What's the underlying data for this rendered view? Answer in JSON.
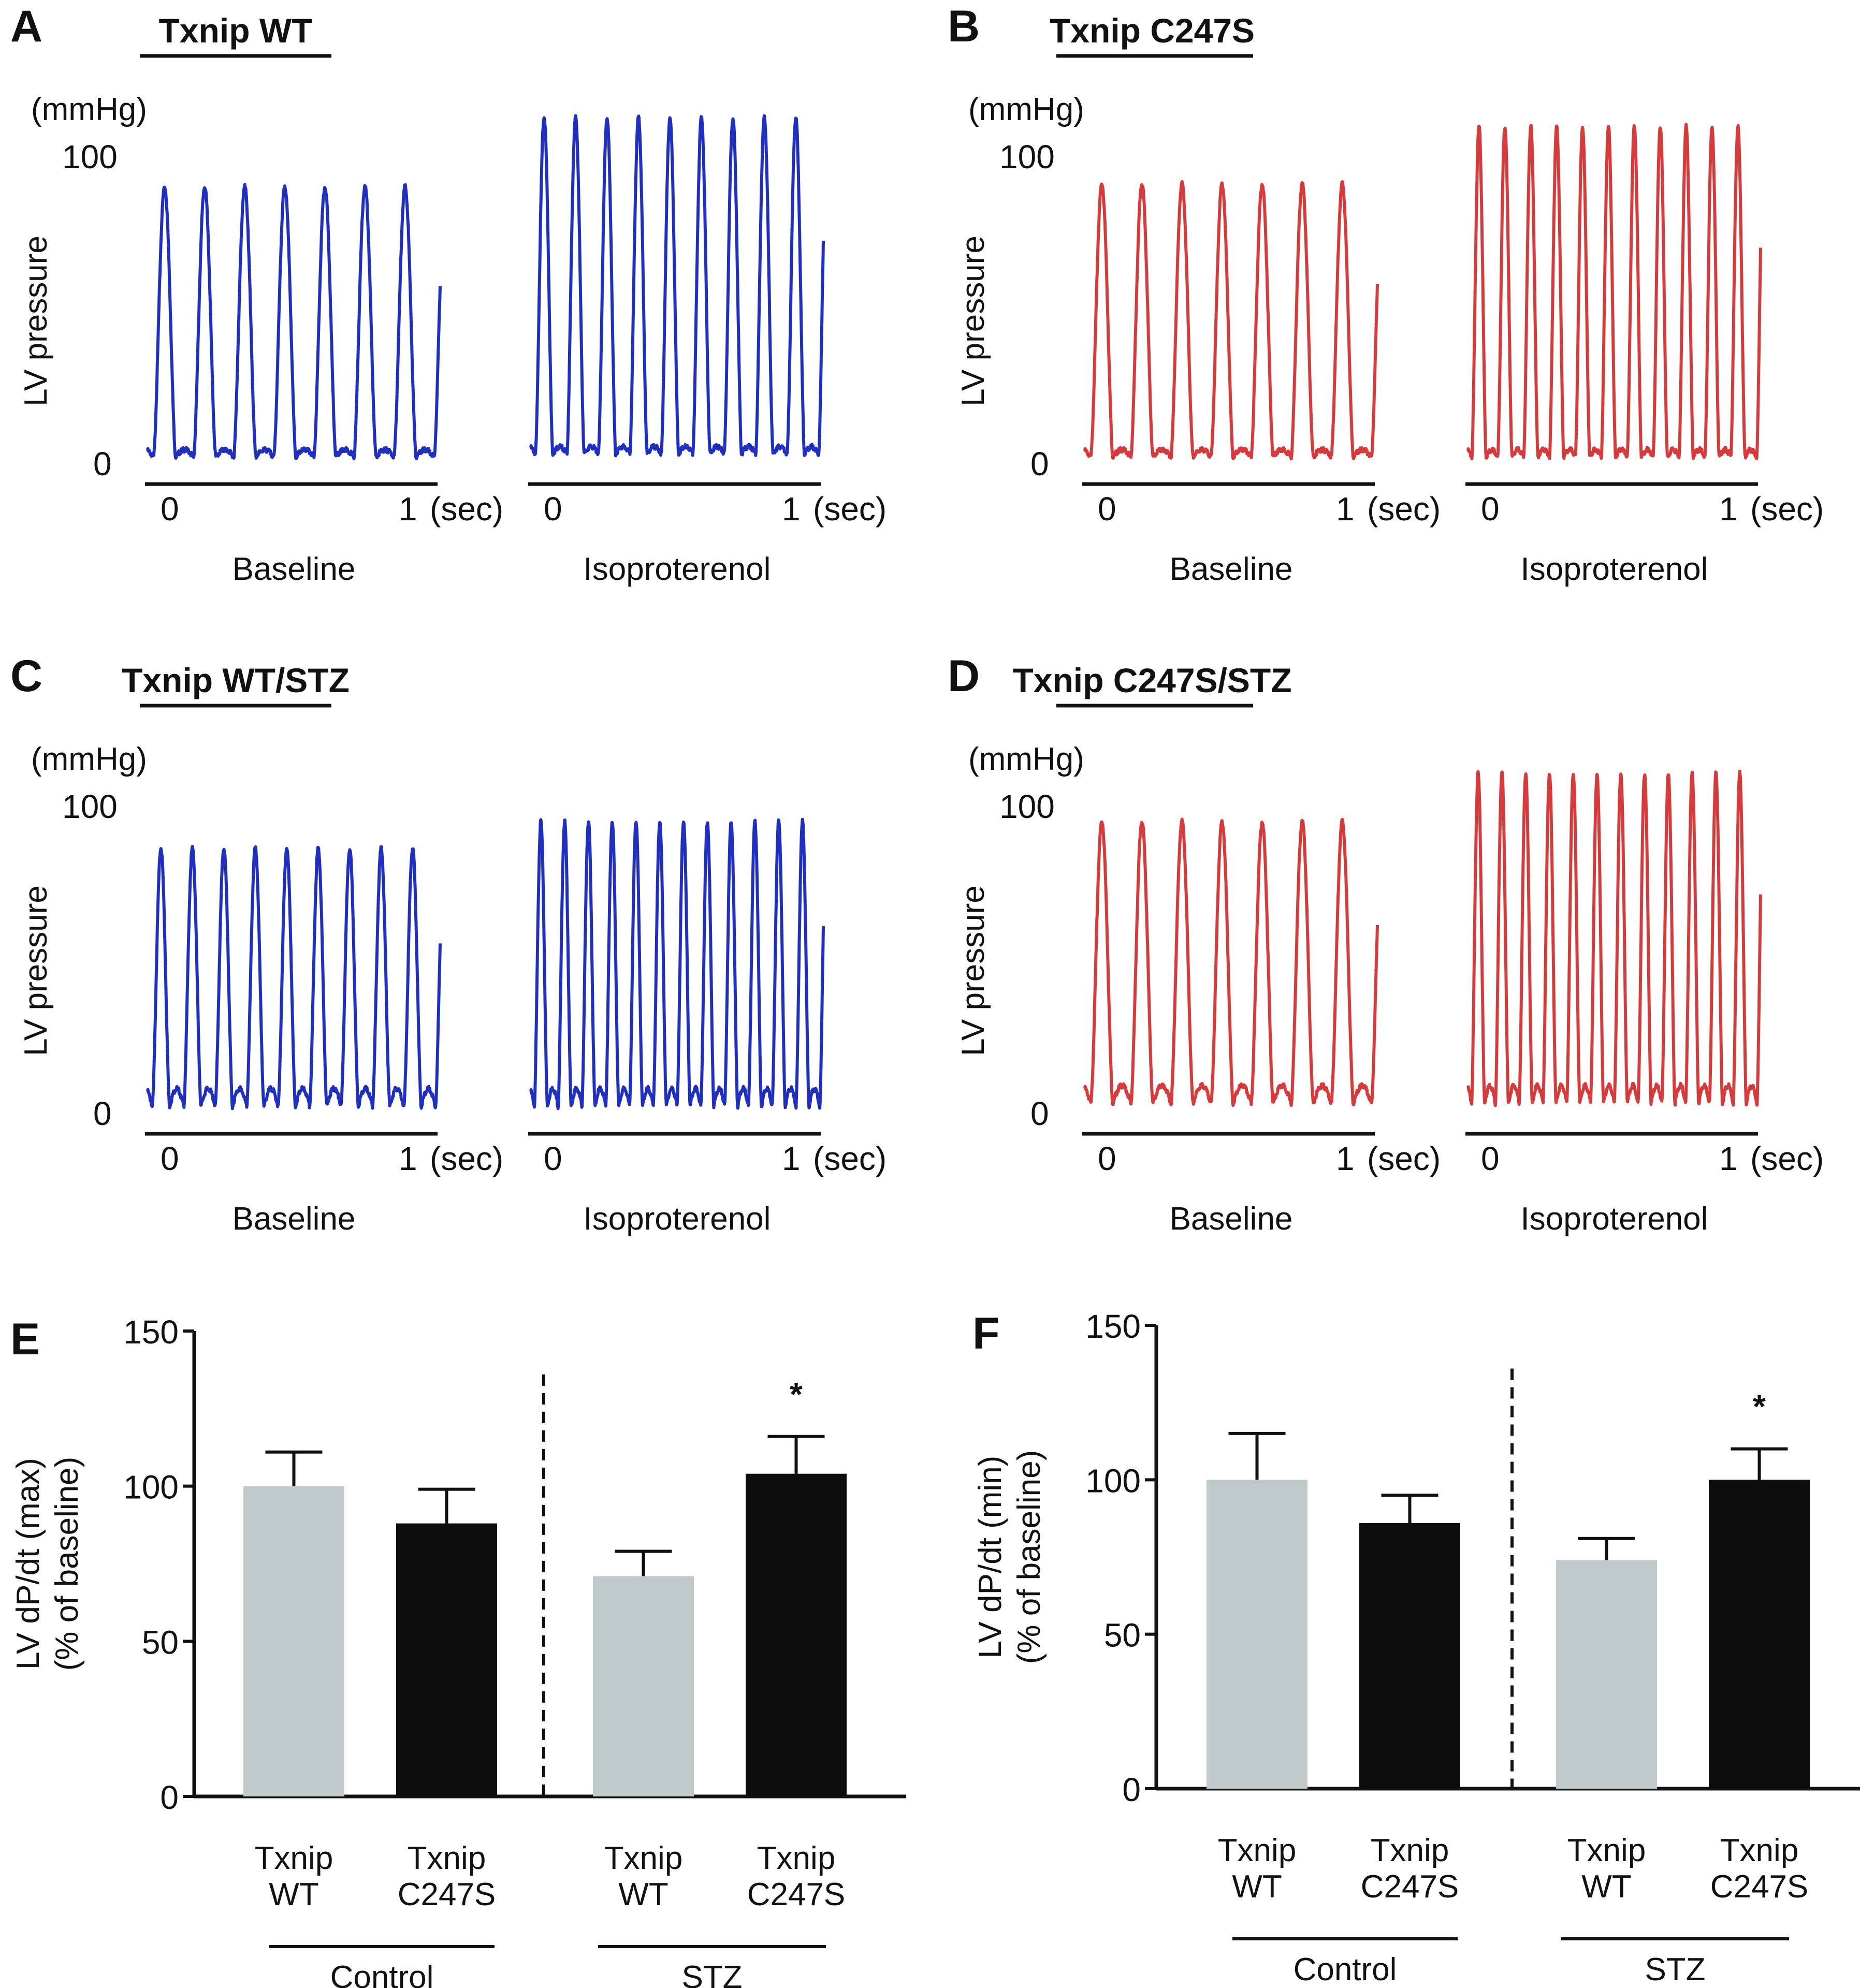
{
  "chart_data": [
    {
      "type": "line",
      "panel": "A",
      "title": "Txnip WT",
      "ylabel": "LV pressure",
      "yunit": "(mmHg)",
      "yticks": [
        "0",
        "100"
      ],
      "ylim": [
        0,
        110
      ],
      "color": "#1f2fbf",
      "traces": [
        {
          "name": "Baseline",
          "beats": 7,
          "peak_mmHg": 93,
          "trough_mmHg": 3,
          "xticks": [
            "0",
            "1"
          ],
          "xunit": "(sec)"
        },
        {
          "name": "Isoproterenol",
          "beats": 9,
          "peak_mmHg": 116,
          "trough_mmHg": 4,
          "xticks": [
            "0",
            "1"
          ],
          "xunit": "(sec)"
        }
      ]
    },
    {
      "type": "line",
      "panel": "B",
      "title": "Txnip C247S",
      "ylabel": "LV pressure",
      "yunit": "(mmHg)",
      "yticks": [
        "0",
        "100"
      ],
      "ylim": [
        0,
        110
      ],
      "color": "#d63a3a",
      "traces": [
        {
          "name": "Baseline",
          "beats": 7,
          "peak_mmHg": 94,
          "trough_mmHg": 3,
          "xticks": [
            "0",
            "1"
          ],
          "xunit": "(sec)"
        },
        {
          "name": "Isoproterenol",
          "beats": 11,
          "peak_mmHg": 113,
          "trough_mmHg": 3,
          "xticks": [
            "0",
            "1"
          ],
          "xunit": "(sec)"
        }
      ]
    },
    {
      "type": "line",
      "panel": "C",
      "title": "Txnip WT/STZ",
      "ylabel": "LV pressure",
      "yunit": "(mmHg)",
      "yticks": [
        "0",
        "100"
      ],
      "ylim": [
        0,
        110
      ],
      "color": "#1f2fbf",
      "traces": [
        {
          "name": "Baseline",
          "beats": 9,
          "peak_mmHg": 89,
          "trough_mmHg": 3,
          "xticks": [
            "0",
            "1"
          ],
          "xunit": "(sec)"
        },
        {
          "name": "Isoproterenol",
          "beats": 12,
          "peak_mmHg": 98,
          "trough_mmHg": 3,
          "xticks": [
            "0",
            "1"
          ],
          "xunit": "(sec)"
        }
      ]
    },
    {
      "type": "line",
      "panel": "D",
      "title": "Txnip C247S/STZ",
      "ylabel": "LV pressure",
      "yunit": "(mmHg)",
      "yticks": [
        "0",
        "100"
      ],
      "ylim": [
        0,
        110
      ],
      "color": "#d63a3a",
      "traces": [
        {
          "name": "Baseline",
          "beats": 7,
          "peak_mmHg": 98,
          "trough_mmHg": 4,
          "xticks": [
            "0",
            "1"
          ],
          "xunit": "(sec)"
        },
        {
          "name": "Isoproterenol",
          "beats": 12,
          "peak_mmHg": 114,
          "trough_mmHg": 4,
          "xticks": [
            "0",
            "1"
          ],
          "xunit": "(sec)"
        }
      ]
    },
    {
      "type": "bar",
      "panel": "E",
      "ylabel_line1": "LV dP/dt (max)",
      "ylabel_line2": "(% of baseline)",
      "ylim": [
        0,
        150
      ],
      "yticks": [
        "0",
        "50",
        "100",
        "150"
      ],
      "categories": [
        {
          "line1": "Txnip",
          "line2": "WT"
        },
        {
          "line1": "Txnip",
          "line2": "C247S"
        },
        {
          "line1": "Txnip",
          "line2": "WT"
        },
        {
          "line1": "Txnip",
          "line2": "C247S"
        }
      ],
      "groups": [
        "Control",
        "STZ"
      ],
      "values": [
        100,
        88,
        71,
        104
      ],
      "errors": [
        11,
        11,
        8,
        12
      ],
      "colors": [
        "#c0cacb",
        "#0c0d0c",
        "#c0cacb",
        "#0c0d0c"
      ],
      "significance": [
        "",
        "",
        "",
        "*"
      ]
    },
    {
      "type": "bar",
      "panel": "F",
      "ylabel_line1": "LV dP/dt (min)",
      "ylabel_line2": "(% of baseline)",
      "ylim": [
        0,
        150
      ],
      "yticks": [
        "0",
        "50",
        "100",
        "150"
      ],
      "categories": [
        {
          "line1": "Txnip",
          "line2": "WT"
        },
        {
          "line1": "Txnip",
          "line2": "C247S"
        },
        {
          "line1": "Txnip",
          "line2": "WT"
        },
        {
          "line1": "Txnip",
          "line2": "C247S"
        }
      ],
      "groups": [
        "Control",
        "STZ"
      ],
      "values": [
        100,
        86,
        74,
        100
      ],
      "errors": [
        15,
        9,
        7,
        10
      ],
      "colors": [
        "#c0cacb",
        "#0c0d0c",
        "#c0cacb",
        "#0c0d0c"
      ],
      "significance": [
        "",
        "",
        "",
        "*"
      ]
    }
  ]
}
